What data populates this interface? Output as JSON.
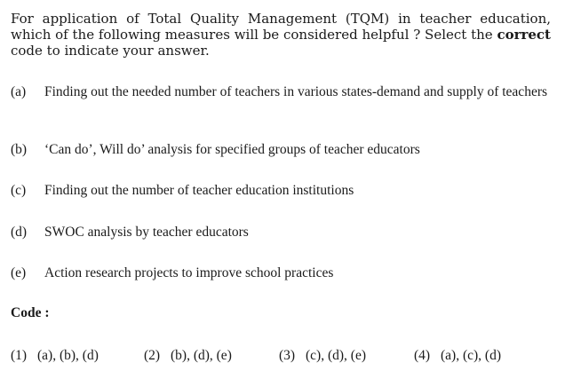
{
  "question": {
    "text_before_bold": "For application of Total Quality Management (TQM) in teacher education, which of the following measures will be considered helpful ?  Select the ",
    "bold_word": "correct",
    "text_after_bold": " code to indicate your answer."
  },
  "options": [
    {
      "label": "(a)",
      "text": "Finding out the needed number of teachers in various states-demand and supply of teachers"
    },
    {
      "label": "(b)",
      "text": "‘Can do’, Will do’ analysis for specified groups of teacher educators"
    },
    {
      "label": "(c)",
      "text": "Finding out the number of teacher education institutions"
    },
    {
      "label": "(d)",
      "text": "SWOC analysis by teacher educators"
    },
    {
      "label": "(e)",
      "text": "Action research projects to improve school practices"
    }
  ],
  "code_heading": "Code :",
  "codes": [
    {
      "number": "(1)",
      "value": "(a), (b), (d)"
    },
    {
      "number": "(2)",
      "value": "(b), (d), (e)"
    },
    {
      "number": "(3)",
      "value": "(c), (d), (e)"
    },
    {
      "number": "(4)",
      "value": "(a), (c), (d)"
    }
  ]
}
